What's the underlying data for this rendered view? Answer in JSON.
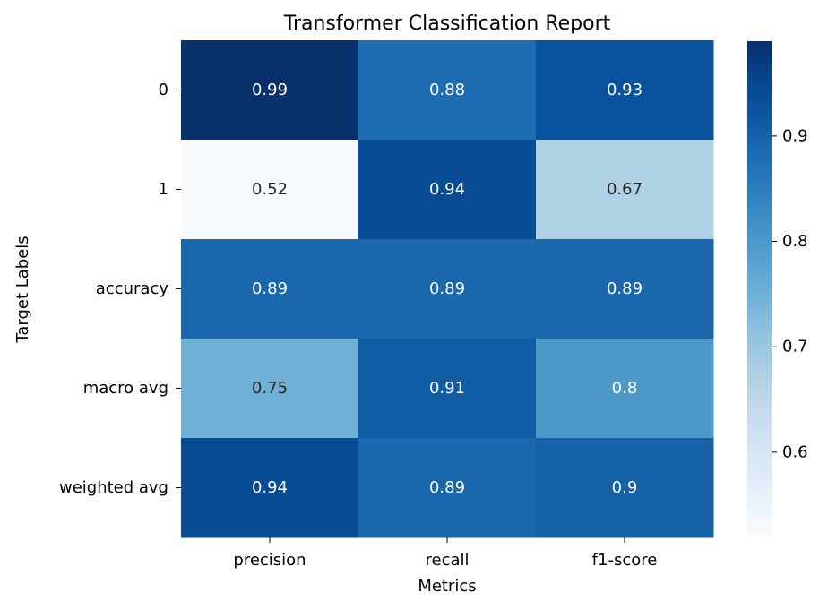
{
  "chart_data": {
    "type": "heatmap",
    "title": "Transformer Classification Report",
    "xlabel": "Metrics",
    "ylabel": "Target Labels",
    "x_categories": [
      "precision",
      "recall",
      "f1-score"
    ],
    "y_categories": [
      "0",
      "1",
      "accuracy",
      "macro avg",
      "weighted avg"
    ],
    "values": [
      [
        0.99,
        0.88,
        0.93
      ],
      [
        0.52,
        0.94,
        0.67
      ],
      [
        0.89,
        0.89,
        0.89
      ],
      [
        0.75,
        0.91,
        0.8
      ],
      [
        0.94,
        0.89,
        0.9
      ]
    ],
    "value_labels": [
      [
        "0.99",
        "0.88",
        "0.93"
      ],
      [
        "0.52",
        "0.94",
        "0.67"
      ],
      [
        "0.89",
        "0.89",
        "0.89"
      ],
      [
        "0.75",
        "0.91",
        "0.8"
      ],
      [
        "0.94",
        "0.89",
        "0.9"
      ]
    ],
    "colormap": "Blues",
    "color_range": [
      0.52,
      0.99
    ],
    "colorbar": {
      "ticks": [
        0.6,
        0.7,
        0.8,
        0.9
      ],
      "tick_labels": [
        "0.6",
        "0.7",
        "0.8",
        "0.9"
      ],
      "placement": "right"
    },
    "grid": false,
    "annotated": true
  }
}
